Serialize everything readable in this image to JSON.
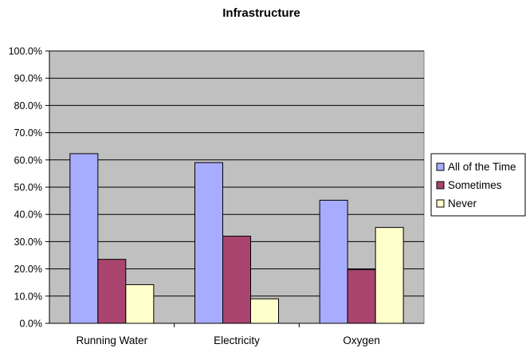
{
  "chart_data": {
    "type": "bar",
    "title": "Infrastructure",
    "xlabel": "",
    "ylabel": "",
    "categories": [
      "Running Water",
      "Electricity",
      "Oxygen"
    ],
    "series": [
      {
        "name": "All of the Time",
        "values": [
          62.3,
          59.0,
          45.2
        ],
        "color": "#a8acff"
      },
      {
        "name": "Sometimes",
        "values": [
          23.5,
          32.0,
          19.7
        ],
        "color": "#a8446e"
      },
      {
        "name": "Never",
        "values": [
          14.2,
          9.0,
          35.2
        ],
        "color": "#ffffcc"
      }
    ],
    "ylim": [
      0,
      100
    ],
    "y_ticks": [
      "0.0%",
      "10.0%",
      "20.0%",
      "30.0%",
      "40.0%",
      "50.0%",
      "60.0%",
      "70.0%",
      "80.0%",
      "90.0%",
      "100.0%"
    ],
    "grid": true,
    "legend_position": "right",
    "plot_background": "#c0c0c0"
  }
}
